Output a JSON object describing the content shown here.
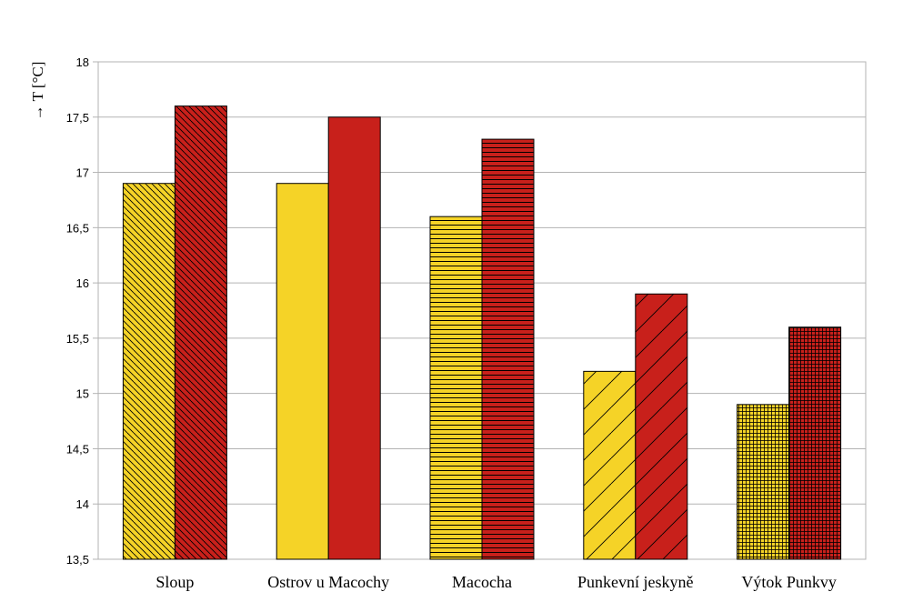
{
  "chart_data": {
    "type": "bar",
    "categories": [
      "Sloup",
      "Ostrov u Macochy",
      "Macocha",
      "Punkevní jeskyně",
      "Výtok Punkvy"
    ],
    "series": [
      {
        "values": [
          16.9,
          16.9,
          16.6,
          15.2,
          14.9
        ],
        "color": "#f5d327"
      },
      {
        "values": [
          17.6,
          17.5,
          17.3,
          15.9,
          15.6
        ],
        "color": "#c8201b"
      }
    ],
    "patterns": [
      "diagonal-back",
      "none",
      "horizontal",
      "diagonal-forward",
      "grid"
    ],
    "ylabel": "→ T [°C]",
    "ylim": [
      13.5,
      18
    ],
    "yticks": [
      13.5,
      14,
      14.5,
      15,
      15.5,
      16,
      16.5,
      17,
      17.5,
      18
    ],
    "ytick_labels": [
      "13,5",
      "14",
      "14,5",
      "15",
      "15,5",
      "16",
      "16,5",
      "17",
      "17,5",
      "18"
    ],
    "grid": true,
    "legend": "none"
  }
}
